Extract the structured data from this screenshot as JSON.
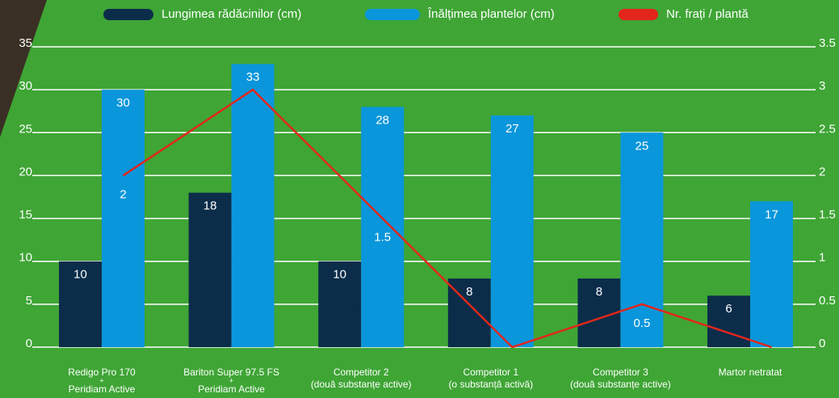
{
  "chart_data": {
    "type": "bar_line",
    "categories": [
      [
        "Redigo Pro 170",
        "+",
        "Peridiam Active"
      ],
      [
        "Bariton Super 97.5 FS",
        "+",
        "Peridiam Active"
      ],
      [
        "Competitor 2",
        "(două substanțe active)"
      ],
      [
        "Competitor 1",
        "(o substanță activă)"
      ],
      [
        "Competitor 3",
        "(două substanțe active)"
      ],
      [
        "Martor netratat"
      ]
    ],
    "series": [
      {
        "name": "Lungimea rădăcinilor (cm)",
        "color": "#0b2d4a",
        "values": [
          10,
          18,
          10,
          8,
          8,
          6
        ]
      },
      {
        "name": "Înălțimea plantelor (cm)",
        "color": "#0a96db",
        "values": [
          30,
          33,
          28,
          27,
          25,
          17
        ]
      },
      {
        "name": "Nr. frați / plantă",
        "color": "#e3261b",
        "axis": "y2",
        "values": [
          2,
          3,
          1.5,
          0,
          0.5,
          0
        ],
        "value_labels": [
          "2",
          null,
          "1.5",
          null,
          "0.5",
          null
        ]
      }
    ],
    "ylim": [
      0,
      35
    ],
    "yticks": [
      0,
      5,
      10,
      15,
      20,
      25,
      30,
      35
    ],
    "y2lim": [
      0,
      3.5
    ],
    "y2ticks": [
      0,
      0.5,
      1,
      1.5,
      2,
      2.5,
      3,
      3.5
    ],
    "grid": true,
    "legend": "top"
  }
}
